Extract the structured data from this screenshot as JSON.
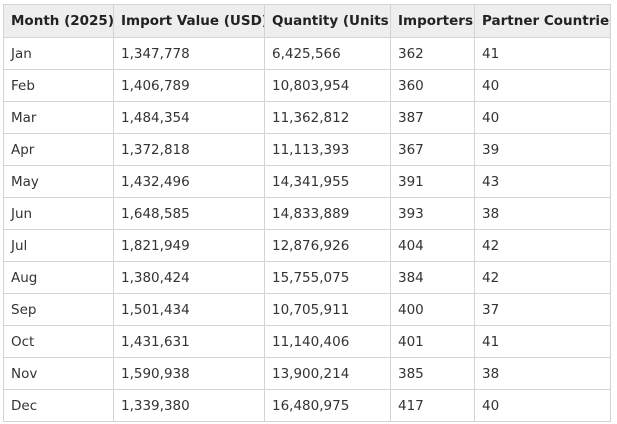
{
  "table": {
    "headers": [
      "Month (2025)",
      "Import Value (USD)",
      "Quantity (Units)",
      "Importers",
      "Partner Countries"
    ],
    "rows": [
      [
        "Jan",
        "1,347,778",
        "6,425,566",
        "362",
        "41"
      ],
      [
        "Feb",
        "1,406,789",
        "10,803,954",
        "360",
        "40"
      ],
      [
        "Mar",
        "1,484,354",
        "11,362,812",
        "387",
        "40"
      ],
      [
        "Apr",
        "1,372,818",
        "11,113,393",
        "367",
        "39"
      ],
      [
        "May",
        "1,432,496",
        "14,341,955",
        "391",
        "43"
      ],
      [
        "Jun",
        "1,648,585",
        "14,833,889",
        "393",
        "38"
      ],
      [
        "Jul",
        "1,821,949",
        "12,876,926",
        "404",
        "42"
      ],
      [
        "Aug",
        "1,380,424",
        "15,755,075",
        "384",
        "42"
      ],
      [
        "Sep",
        "1,501,434",
        "10,705,911",
        "400",
        "37"
      ],
      [
        "Oct",
        "1,431,631",
        "11,140,406",
        "401",
        "41"
      ],
      [
        "Nov",
        "1,590,938",
        "13,900,214",
        "385",
        "38"
      ],
      [
        "Dec",
        "1,339,380",
        "16,480,975",
        "417",
        "40"
      ]
    ]
  },
  "colors": {
    "header_bg": "#eeeeee",
    "border": "#d4d4d4",
    "text": "#333333"
  }
}
